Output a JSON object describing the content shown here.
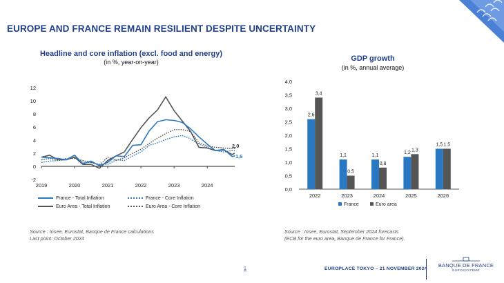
{
  "slide": {
    "title": "EUROPE AND FRANCE REMAIN RESILIENT DESPITE UNCERTAINTY",
    "footer": "EUROPLACE TOKYO – 21 NOVEMBER 2024",
    "page_number": "1",
    "logo_name": "BANQUE DE FRANCE",
    "logo_sub": "EUROSYSTÈME",
    "accent_color": "#1f3f8a"
  },
  "inflation_chart": {
    "title": "Headline and core inflation (excl. food and energy)",
    "subtitle": "(in %, year-on-year)",
    "source_line1": "Source : Insee, Eurostat, Banque de France calculations",
    "source_line2": "Last point: October 2024",
    "end_labels": {
      "euro_total": "2,0",
      "france_total": "1,6"
    }
  },
  "gdp_chart": {
    "title": "GDP growth",
    "subtitle": "(in %, annual average)",
    "source_line1": "Source : Insee, Eurostat, September 2024 forecasts",
    "source_line2": "(ECB for the euro area, Banque de France for France)."
  },
  "chart_data": [
    {
      "type": "line",
      "title": "Headline and core inflation (excl. food and energy)",
      "ylabel": "in %, year-on-year",
      "ylim": [
        -2,
        12
      ],
      "yticks": [
        "-2",
        "0",
        "2",
        "4",
        "6",
        "8",
        "10",
        "12"
      ],
      "xlim": [
        2019,
        2024.83
      ],
      "xticks": [
        "2019",
        "2020",
        "2021",
        "2022",
        "2023",
        "2024"
      ],
      "grid": false,
      "legend_position": "bottom",
      "series": [
        {
          "name": "France - Total Inflation",
          "color": "#2b78c2",
          "dash": "solid",
          "x": [
            2019,
            2019.25,
            2019.5,
            2019.75,
            2020,
            2020.25,
            2020.5,
            2020.75,
            2021,
            2021.25,
            2021.5,
            2021.75,
            2022,
            2022.25,
            2022.5,
            2022.75,
            2023,
            2023.25,
            2023.5,
            2023.75,
            2024,
            2024.25,
            2024.5,
            2024.75,
            2024.83
          ],
          "values": [
            1.4,
            1.3,
            1.2,
            1.0,
            1.7,
            0.4,
            0.8,
            0.1,
            0.6,
            1.6,
            1.5,
            3.2,
            3.3,
            5.4,
            6.8,
            7.1,
            7.0,
            6.7,
            5.7,
            4.5,
            3.4,
            2.4,
            2.6,
            1.5,
            1.6
          ]
        },
        {
          "name": "France - Core Inflation",
          "color": "#2b78c2",
          "dash": "dotted",
          "x": [
            2019,
            2019.25,
            2019.5,
            2019.75,
            2020,
            2020.25,
            2020.5,
            2020.75,
            2021,
            2021.25,
            2021.5,
            2021.75,
            2022,
            2022.25,
            2022.5,
            2022.75,
            2023,
            2023.25,
            2023.5,
            2023.75,
            2024,
            2024.25,
            2024.5,
            2024.75,
            2024.83
          ],
          "values": [
            0.6,
            0.8,
            0.9,
            1.0,
            1.4,
            0.6,
            0.6,
            0.3,
            0.3,
            1.0,
            0.9,
            1.6,
            2.2,
            3.2,
            3.6,
            4.1,
            4.5,
            4.7,
            4.2,
            3.4,
            2.9,
            2.4,
            2.2,
            2.4,
            2.4
          ]
        },
        {
          "name": "Euro Area - Total Inflation",
          "color": "#555555",
          "dash": "solid",
          "x": [
            2019,
            2019.25,
            2019.5,
            2019.75,
            2020,
            2020.25,
            2020.5,
            2020.75,
            2021,
            2021.25,
            2021.5,
            2021.75,
            2022,
            2022.25,
            2022.5,
            2022.75,
            2023,
            2023.25,
            2023.5,
            2023.75,
            2024,
            2024.25,
            2024.5,
            2024.75,
            2024.83
          ],
          "values": [
            1.4,
            1.7,
            1.0,
            1.0,
            1.4,
            0.3,
            0.3,
            -0.3,
            0.9,
            1.6,
            2.2,
            4.1,
            5.9,
            7.4,
            8.6,
            10.6,
            8.5,
            6.9,
            5.3,
            2.9,
            2.8,
            2.4,
            2.5,
            1.8,
            2.0
          ]
        },
        {
          "name": "Euro Area - Core Inflation",
          "color": "#555555",
          "dash": "dotted",
          "x": [
            2019,
            2019.25,
            2019.5,
            2019.75,
            2020,
            2020.25,
            2020.5,
            2020.75,
            2021,
            2021.25,
            2021.5,
            2021.75,
            2022,
            2022.25,
            2022.5,
            2022.75,
            2023,
            2023.25,
            2023.5,
            2023.75,
            2024,
            2024.25,
            2024.5,
            2024.75,
            2024.83
          ],
          "values": [
            1.0,
            1.2,
            0.9,
            1.2,
            1.2,
            0.9,
            0.6,
            0.2,
            1.4,
            0.9,
            1.3,
            2.0,
            2.6,
            3.5,
            4.3,
            5.0,
            5.6,
            5.6,
            5.3,
            3.6,
            3.1,
            2.9,
            2.8,
            2.7,
            2.7
          ]
        }
      ]
    },
    {
      "type": "bar",
      "title": "GDP growth",
      "ylabel": "in %, annual average",
      "ylim": [
        0,
        4
      ],
      "yticks": [
        "0,0",
        "0,5",
        "1,0",
        "1,5",
        "2,0",
        "2,5",
        "3,0",
        "3,5",
        "4,0"
      ],
      "categories": [
        "2022",
        "2023",
        "2024",
        "2025",
        "2026"
      ],
      "grid": false,
      "legend_position": "bottom",
      "series": [
        {
          "name": "France",
          "color": "#2b78c2",
          "values": [
            2.6,
            1.1,
            1.1,
            1.2,
            1.5
          ],
          "labels": [
            "2,6",
            "1,1",
            "1,1",
            "1,2",
            "1,5"
          ]
        },
        {
          "name": "Euro area",
          "color": "#555555",
          "values": [
            3.4,
            0.5,
            0.8,
            1.3,
            1.5
          ],
          "labels": [
            "3,4",
            "0,5",
            "0,8",
            "1,3",
            "1,5"
          ]
        }
      ]
    }
  ]
}
